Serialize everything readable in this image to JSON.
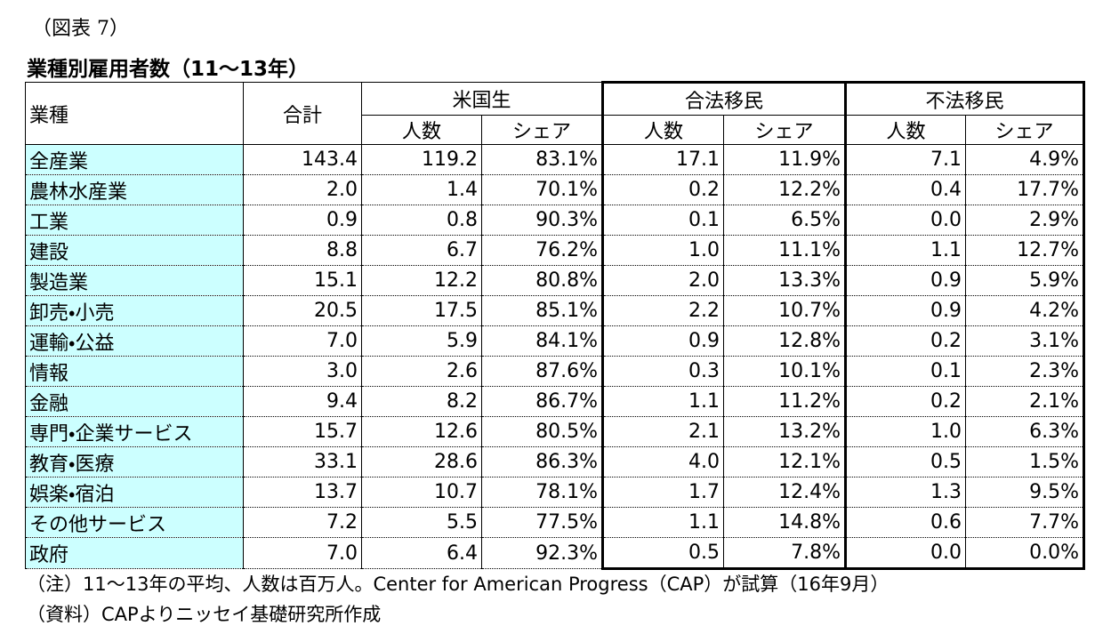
{
  "figure_label": "（図表 7）",
  "title": "業種別雇用者数（11～13年）",
  "table": {
    "header": {
      "industry": "業種",
      "total": "合計",
      "groups": [
        "米国生",
        "合法移民",
        "不法移民"
      ],
      "sub": [
        "人数",
        "シェア",
        "人数",
        "シェア",
        "人数",
        "シェア"
      ]
    },
    "rows": [
      [
        "全産業",
        "143.4",
        "119.2",
        "83.1%",
        "17.1",
        "11.9%",
        "7.1",
        "4.9%"
      ],
      [
        "農林水産業",
        "2.0",
        "1.4",
        "70.1%",
        "0.2",
        "12.2%",
        "0.4",
        "17.7%"
      ],
      [
        "工業",
        "0.9",
        "0.8",
        "90.3%",
        "0.1",
        "6.5%",
        "0.0",
        "2.9%"
      ],
      [
        "建設",
        "8.8",
        "6.7",
        "76.2%",
        "1.0",
        "11.1%",
        "1.1",
        "12.7%"
      ],
      [
        "製造業",
        "15.1",
        "12.2",
        "80.8%",
        "2.0",
        "13.3%",
        "0.9",
        "5.9%"
      ],
      [
        "卸売・小売",
        "20.5",
        "17.5",
        "85.1%",
        "2.2",
        "10.7%",
        "0.9",
        "4.2%"
      ],
      [
        "運輸・公益",
        "7.0",
        "5.9",
        "84.1%",
        "0.9",
        "12.8%",
        "0.2",
        "3.1%"
      ],
      [
        "情報",
        "3.0",
        "2.6",
        "87.6%",
        "0.3",
        "10.1%",
        "0.1",
        "2.3%"
      ],
      [
        "金融",
        "9.4",
        "8.2",
        "86.7%",
        "1.1",
        "11.2%",
        "0.2",
        "2.1%"
      ],
      [
        "専門・企業サービス",
        "15.7",
        "12.6",
        "80.5%",
        "2.1",
        "13.2%",
        "1.0",
        "6.3%"
      ],
      [
        "教育・医療",
        "33.1",
        "28.6",
        "86.3%",
        "4.0",
        "12.1%",
        "0.5",
        "1.5%"
      ],
      [
        "娯楽・宿泊",
        "13.7",
        "10.7",
        "78.1%",
        "1.7",
        "12.4%",
        "1.3",
        "9.5%"
      ],
      [
        "その他サービス",
        "7.2",
        "5.5",
        "77.5%",
        "1.1",
        "14.8%",
        "0.6",
        "7.7%"
      ],
      [
        "政府",
        "7.0",
        "6.4",
        "92.3%",
        "0.5",
        "7.8%",
        "0.0",
        "0.0%"
      ]
    ]
  },
  "notes": [
    "（注）11～13年の平均、人数は百万人。Center for American Progress（CAP）が試算（16年9月）",
    "（資料）CAPよりニッセイ基礎研究所作成"
  ]
}
